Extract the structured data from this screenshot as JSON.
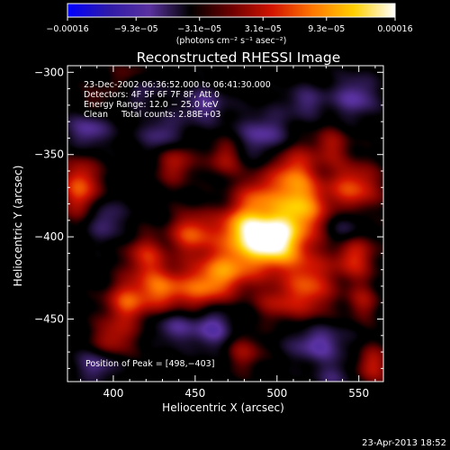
{
  "chart_data": {
    "type": "heatmap",
    "title": "Reconstructed RHESSI Image",
    "xlabel": "Heliocentric X (arcsec)",
    "ylabel": "Heliocentric Y (arcsec)",
    "xlim": [
      372,
      565
    ],
    "ylim": [
      -488,
      -296
    ],
    "x_ticks": [
      400,
      450,
      500,
      550
    ],
    "y_ticks": [
      -300,
      -350,
      -400,
      -450
    ],
    "x_tick_labels": [
      "400",
      "450",
      "500",
      "550"
    ],
    "y_tick_labels": [
      "−300",
      "−350",
      "−400",
      "−450"
    ],
    "colorbar": {
      "min": -0.00016,
      "max": 0.00016,
      "tick_values": [
        -0.00016,
        -9.3e-05,
        -3.1e-05,
        3.1e-05,
        9.3e-05,
        0.00016
      ],
      "tick_labels": [
        "−0.00016",
        "−9.3e−05",
        "−3.1e−05",
        "3.1e−05",
        "9.3e−05",
        "0.00016"
      ],
      "units": "(photons cm⁻² s⁻¹ asec⁻²)",
      "colors": [
        "#0000ff",
        "#2e1aa8",
        "#5a32a0",
        "#000000",
        "#6b0000",
        "#d21400",
        "#ff7800",
        "#ffd000",
        "#ffffff"
      ]
    },
    "annotations": [
      "23-Dec-2002 06:36:52.000 to 06:41:30.000",
      "Detectors: 4F 5F 6F 7F 8F, Att 0",
      "Energy Range: 12.0 − 25.0 keV",
      "Clean     Total counts: 2.88E+03"
    ],
    "peak_label": "Position of Peak = [498,−403]",
    "peak": [
      498,
      -403
    ],
    "timestamp": "23-Apr-2013 18:52",
    "features": [
      {
        "x": 498,
        "y": -403,
        "amp": 1.0,
        "sx": 13,
        "sy": 12
      },
      {
        "x": 478,
        "y": -395,
        "amp": 0.62,
        "sx": 11,
        "sy": 10
      },
      {
        "x": 515,
        "y": -383,
        "amp": 0.58,
        "sx": 12,
        "sy": 11
      },
      {
        "x": 510,
        "y": -362,
        "amp": 0.52,
        "sx": 10,
        "sy": 12
      },
      {
        "x": 488,
        "y": -375,
        "amp": 0.4,
        "sx": 9,
        "sy": 9
      },
      {
        "x": 470,
        "y": -420,
        "amp": 0.55,
        "sx": 12,
        "sy": 10
      },
      {
        "x": 520,
        "y": -430,
        "amp": 0.5,
        "sx": 10,
        "sy": 13
      },
      {
        "x": 448,
        "y": -398,
        "amp": 0.52,
        "sx": 9,
        "sy": 9
      },
      {
        "x": 455,
        "y": -432,
        "amp": 0.45,
        "sx": 10,
        "sy": 10
      },
      {
        "x": 430,
        "y": -432,
        "amp": 0.55,
        "sx": 11,
        "sy": 9
      },
      {
        "x": 408,
        "y": -440,
        "amp": 0.48,
        "sx": 9,
        "sy": 9
      },
      {
        "x": 420,
        "y": -412,
        "amp": 0.4,
        "sx": 9,
        "sy": 9
      },
      {
        "x": 400,
        "y": -462,
        "amp": 0.35,
        "sx": 9,
        "sy": 8
      },
      {
        "x": 380,
        "y": -370,
        "amp": 0.55,
        "sx": 8,
        "sy": 12
      },
      {
        "x": 547,
        "y": -370,
        "amp": 0.5,
        "sx": 11,
        "sy": 10
      },
      {
        "x": 547,
        "y": -412,
        "amp": 0.45,
        "sx": 9,
        "sy": 10
      },
      {
        "x": 533,
        "y": -345,
        "amp": 0.3,
        "sx": 8,
        "sy": 8
      },
      {
        "x": 438,
        "y": -355,
        "amp": 0.35,
        "sx": 8,
        "sy": 9
      },
      {
        "x": 468,
        "y": -352,
        "amp": 0.32,
        "sx": 7,
        "sy": 8
      },
      {
        "x": 500,
        "y": -440,
        "amp": 0.3,
        "sx": 9,
        "sy": 8
      },
      {
        "x": 480,
        "y": -470,
        "amp": 0.28,
        "sx": 8,
        "sy": 8
      },
      {
        "x": 558,
        "y": -478,
        "amp": 0.38,
        "sx": 7,
        "sy": 8
      },
      {
        "x": 410,
        "y": -305,
        "amp": 0.3,
        "sx": 8,
        "sy": 7
      },
      {
        "x": 390,
        "y": -318,
        "amp": 0.18,
        "sx": 7,
        "sy": 7
      },
      {
        "x": 552,
        "y": -440,
        "amp": 0.28,
        "sx": 7,
        "sy": 8
      },
      {
        "x": 460,
        "y": -455,
        "amp": -0.4,
        "sx": 9,
        "sy": 9
      },
      {
        "x": 525,
        "y": -465,
        "amp": -0.38,
        "sx": 12,
        "sy": 8
      },
      {
        "x": 437,
        "y": -455,
        "amp": -0.3,
        "sx": 8,
        "sy": 7
      },
      {
        "x": 415,
        "y": -310,
        "amp": -0.32,
        "sx": 9,
        "sy": 7
      },
      {
        "x": 385,
        "y": -335,
        "amp": -0.35,
        "sx": 9,
        "sy": 8
      },
      {
        "x": 455,
        "y": -320,
        "amp": -0.3,
        "sx": 10,
        "sy": 8
      },
      {
        "x": 492,
        "y": -338,
        "amp": -0.35,
        "sx": 11,
        "sy": 9
      },
      {
        "x": 518,
        "y": -318,
        "amp": -0.25,
        "sx": 10,
        "sy": 7
      },
      {
        "x": 548,
        "y": -315,
        "amp": -0.35,
        "sx": 9,
        "sy": 9
      },
      {
        "x": 430,
        "y": -338,
        "amp": -0.3,
        "sx": 9,
        "sy": 8
      },
      {
        "x": 542,
        "y": -395,
        "amp": -0.28,
        "sx": 7,
        "sy": 8
      },
      {
        "x": 395,
        "y": -390,
        "amp": -0.28,
        "sx": 8,
        "sy": 9
      },
      {
        "x": 390,
        "y": -478,
        "amp": -0.3,
        "sx": 9,
        "sy": 7
      },
      {
        "x": 535,
        "y": -485,
        "amp": -0.22,
        "sx": 8,
        "sy": 6
      }
    ]
  }
}
